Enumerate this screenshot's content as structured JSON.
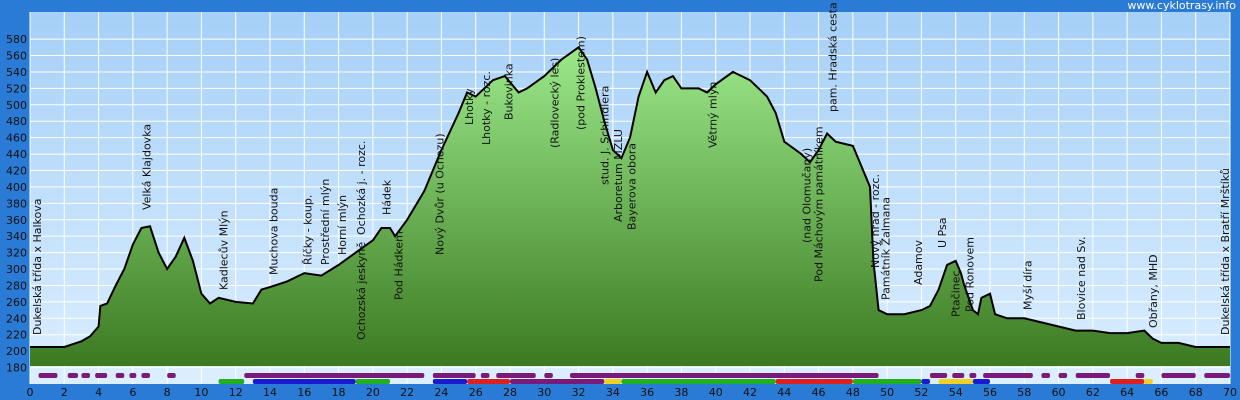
{
  "chart_data": {
    "type": "area",
    "watermark": "www.cyklotrasy.info",
    "x": [
      0,
      1,
      2,
      3,
      3.5,
      4,
      4.1,
      4.5,
      5,
      5.5,
      6,
      6.5,
      7,
      7.5,
      8,
      8.5,
      9,
      9.5,
      10,
      10.5,
      11,
      12,
      13,
      13.5,
      14,
      15,
      16,
      17,
      18,
      19,
      20,
      20.5,
      21,
      21.3,
      22,
      23,
      24,
      25,
      25.5,
      26,
      27,
      27.7,
      28.5,
      29,
      30,
      31,
      32,
      32.5,
      33,
      33.5,
      34,
      34.5,
      35,
      35.5,
      36,
      36.5,
      37,
      37.5,
      38,
      39,
      39.5,
      40,
      41,
      42,
      43,
      43.5,
      44,
      45,
      45.5,
      46,
      46.5,
      47,
      48,
      49,
      49.2,
      49.5,
      50,
      51,
      52,
      52.5,
      53,
      53.5,
      54,
      54.3,
      54.5,
      55,
      55.3,
      55.5,
      56,
      56.3,
      57,
      58,
      59,
      60,
      61,
      62,
      63,
      64,
      65,
      65.5,
      66,
      67,
      68,
      69,
      70
    ],
    "values": [
      205,
      205,
      205,
      212,
      218,
      230,
      255,
      258,
      280,
      300,
      330,
      350,
      352,
      320,
      300,
      315,
      338,
      310,
      270,
      258,
      265,
      260,
      258,
      275,
      278,
      285,
      295,
      292,
      305,
      320,
      335,
      350,
      350,
      340,
      360,
      395,
      445,
      490,
      515,
      510,
      530,
      535,
      515,
      520,
      535,
      555,
      570,
      555,
      520,
      480,
      445,
      435,
      460,
      510,
      540,
      515,
      530,
      535,
      520,
      520,
      515,
      525,
      540,
      530,
      510,
      490,
      455,
      440,
      430,
      445,
      465,
      455,
      450,
      400,
      310,
      250,
      245,
      245,
      250,
      255,
      275,
      305,
      310,
      295,
      280,
      250,
      245,
      265,
      270,
      245,
      240,
      240,
      235,
      230,
      225,
      225,
      222,
      222,
      225,
      215,
      210,
      210,
      205,
      205,
      205
    ],
    "color": "#5aa83a",
    "xlim": [
      0,
      70
    ],
    "ylim": [
      160,
      613
    ],
    "xticks": [
      0,
      2,
      4,
      6,
      8,
      10,
      12,
      14,
      16,
      18,
      20,
      22,
      24,
      26,
      28,
      30,
      32,
      34,
      36,
      38,
      40,
      42,
      44,
      46,
      48,
      50,
      52,
      54,
      56,
      58,
      60,
      62,
      64,
      66,
      68,
      70
    ],
    "yticks": [
      180,
      200,
      220,
      240,
      260,
      280,
      300,
      320,
      340,
      360,
      380,
      400,
      420,
      440,
      460,
      480,
      500,
      520,
      540,
      560,
      580
    ],
    "grid": true,
    "labels": [
      {
        "text": "Dukelská třída x Halkova",
        "km": 0.4
      },
      {
        "text": "Velká Klajdovka",
        "km": 6.8
      },
      {
        "text": "Kadlecův Mlýn",
        "km": 11.3
      },
      {
        "text": "Muchova bouda",
        "km": 14.2
      },
      {
        "text": "Říčky - koup.",
        "km": 16.2
      },
      {
        "text": "Prostřední mlýn",
        "km": 17.2
      },
      {
        "text": "Horní mlýn",
        "km": 18.2
      },
      {
        "text": "Ochozká j. - rozc.",
        "km": 19.3
      },
      {
        "text": "Ochozská jeskyně",
        "km": 19.3
      },
      {
        "text": "Hádek",
        "km": 20.8
      },
      {
        "text": "Pod Hádkem",
        "km": 21.5
      },
      {
        "text": "Nový Dvůr (u Ochozu)",
        "km": 23.9
      },
      {
        "text": "Lhotky",
        "km": 25.6
      },
      {
        "text": "Lhotky - rozc.",
        "km": 26.6
      },
      {
        "text": "Bukovinka",
        "km": 27.9
      },
      {
        "text": "(Radlovecký les)",
        "km": 30.6
      },
      {
        "text": "(pod Proklestem)",
        "km": 32.1
      },
      {
        "text": "stud. J. Schindlera",
        "km": 33.5
      },
      {
        "text": "Arboretum MZLU",
        "km": 34.3
      },
      {
        "text": "Bayerova obora",
        "km": 35.1
      },
      {
        "text": "Větrný mlýn",
        "km": 39.8
      },
      {
        "text": "(nad Olomučany)",
        "km": 45.3
      },
      {
        "text": "Pod Máchovým památníkem",
        "km": 46
      },
      {
        "text": "pam. Hradská cesta",
        "km": 46.8
      },
      {
        "text": "Nový hrad - rozc.",
        "km": 49.3
      },
      {
        "text": "Památník Žalmana",
        "km": 49.9
      },
      {
        "text": "Adamov",
        "km": 51.8
      },
      {
        "text": "U Psa",
        "km": 53.2
      },
      {
        "text": "Ptačinec",
        "km": 54
      },
      {
        "text": "Pod Ronovem",
        "km": 54.8
      },
      {
        "text": "Myší díra",
        "km": 58.2
      },
      {
        "text": "Blovice nad Sv.",
        "km": 61.3
      },
      {
        "text": "Obřany, MHD",
        "km": 65.5
      },
      {
        "text": "Dukelská třída x Bratří Mrštíků",
        "km": 69.7
      }
    ],
    "bands_upper": [
      [
        0.5,
        1.6,
        "#7a1a7a"
      ],
      [
        2.2,
        2.8,
        "#7a1a7a"
      ],
      [
        3,
        3.5,
        "#7a1a7a"
      ],
      [
        3.8,
        4.5,
        "#7a1a7a"
      ],
      [
        5,
        5.5,
        "#7a1a7a"
      ],
      [
        5.8,
        6.2,
        "#7a1a7a"
      ],
      [
        6.5,
        7,
        "#7a1a7a"
      ],
      [
        8,
        8.5,
        "#7a1a7a"
      ],
      [
        12.5,
        23,
        "#7a1a7a"
      ],
      [
        23.5,
        26,
        "#7a1a7a"
      ],
      [
        26.3,
        26.8,
        "#7a1a7a"
      ],
      [
        27.2,
        29.5,
        "#7a1a7a"
      ],
      [
        30,
        30.5,
        "#7a1a7a"
      ],
      [
        31.5,
        49.5,
        "#7a1a7a"
      ],
      [
        52.5,
        53.5,
        "#7a1a7a"
      ],
      [
        53.8,
        54.5,
        "#7a1a7a"
      ],
      [
        54.8,
        55.2,
        "#7a1a7a"
      ],
      [
        55.6,
        58.5,
        "#7a1a7a"
      ],
      [
        59,
        59.5,
        "#7a1a7a"
      ],
      [
        60,
        60.5,
        "#7a1a7a"
      ],
      [
        61,
        63,
        "#7a1a7a"
      ],
      [
        64.5,
        65,
        "#7a1a7a"
      ],
      [
        66,
        68,
        "#7a1a7a"
      ],
      [
        68.5,
        70,
        "#7a1a7a"
      ]
    ],
    "bands_lower": [
      [
        11,
        12.5,
        "#20b020"
      ],
      [
        13,
        19,
        "#1a1ad0"
      ],
      [
        19,
        21,
        "#20b020"
      ],
      [
        23.5,
        25.5,
        "#1a1ad0"
      ],
      [
        25.5,
        28,
        "#e02020"
      ],
      [
        28,
        33.5,
        "#7a1a7a"
      ],
      [
        33.5,
        34.5,
        "#f0d020"
      ],
      [
        34.5,
        43.5,
        "#20b020"
      ],
      [
        43.5,
        48,
        "#e02020"
      ],
      [
        48,
        52,
        "#20b020"
      ],
      [
        52,
        52.5,
        "#1a1ad0"
      ],
      [
        53,
        55,
        "#f0d020"
      ],
      [
        55,
        56,
        "#1a1ad0"
      ],
      [
        63,
        65,
        "#e02020"
      ],
      [
        65,
        65.5,
        "#f0d020"
      ]
    ]
  }
}
